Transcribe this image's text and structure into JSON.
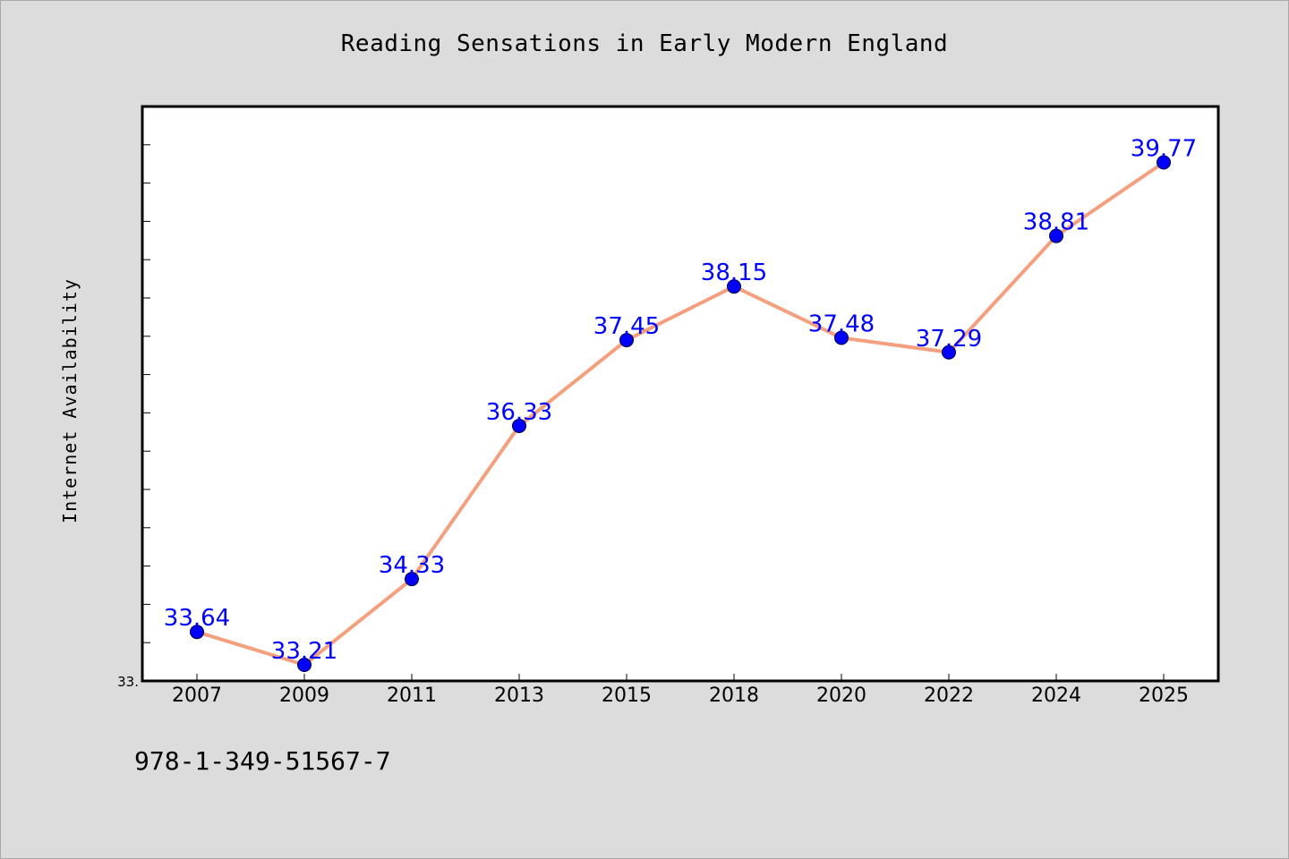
{
  "chart_data": {
    "type": "line",
    "title": "Reading Sensations in Early Modern England",
    "xlabel": "",
    "ylabel": "Internet Availability",
    "categories": [
      "2007",
      "2009",
      "2011",
      "2013",
      "2015",
      "2018",
      "2020",
      "2022",
      "2024",
      "2025"
    ],
    "series": [
      {
        "values": [
          33.64,
          33.21,
          34.33,
          36.33,
          37.45,
          38.15,
          37.48,
          37.29,
          38.81,
          39.77
        ]
      }
    ],
    "data_labels": [
      "33.64",
      "33.21",
      "34.33",
      "36.33",
      "37.45",
      "38.15",
      "37.48",
      "37.29",
      "38.81",
      "39.77"
    ],
    "ylim": [
      33.0,
      40.5
    ],
    "ytick_labels": [
      "33."
    ],
    "grid": false,
    "line_color": "#f4a07e",
    "marker_color": "#0000ff",
    "label_color": "#0000ff",
    "background_color": "#dcdcdc",
    "plot_background": "#ffffff"
  },
  "footnote": "978-1-349-51567-7"
}
